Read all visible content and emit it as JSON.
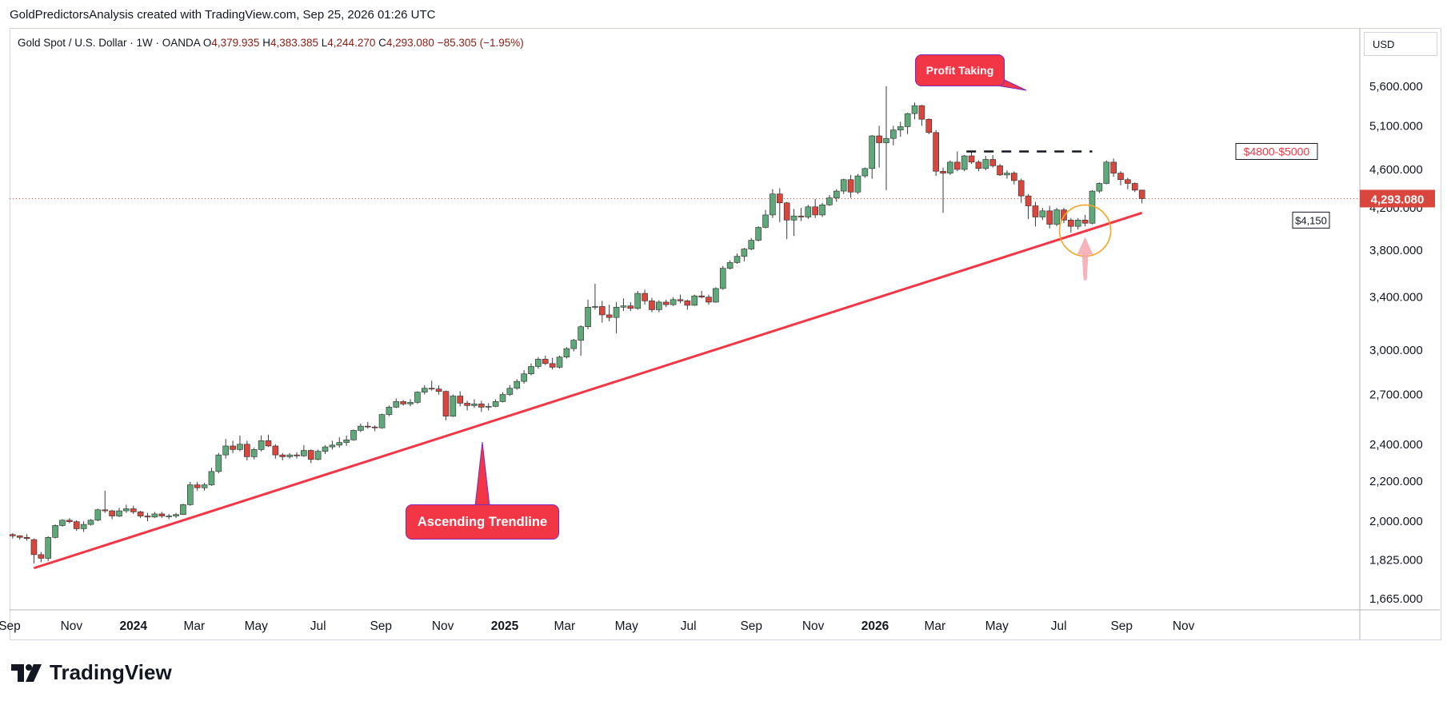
{
  "header": {
    "attribution": "GoldPredictorsAnalysis created with TradingView.com, Sep 25, 2026 01:26 UTC"
  },
  "legend": {
    "symbol": "Gold Spot / U.S. Dollar · 1W · OANDA",
    "open_label": "O",
    "open": "4,379.935",
    "high_label": "H",
    "high": "4,383.385",
    "low_label": "L",
    "low": "4,244.270",
    "close_label": "C",
    "close": "4,293.080",
    "change": "−85.305 (−1.95%)"
  },
  "currency_button": "USD",
  "annotations": {
    "profit_taking": "Profit Taking",
    "ascending_trendline": "Ascending Trendline",
    "resistance_zone": "$4800-$5000",
    "support_level": "$4,150"
  },
  "footer": {
    "brand": "TradingView"
  },
  "colors": {
    "up": "#5fa87a",
    "down": "#d9463e",
    "trendline": "#f23645",
    "circle": "#f5a623",
    "arrow": "#f4a7ae"
  },
  "chart_data": {
    "type": "candlestick",
    "title": "Gold Spot / U.S. Dollar · 1W · OANDA",
    "scale": "log",
    "y_ticks": [
      1665,
      1825,
      2000,
      2200,
      2400,
      2700,
      3000,
      3400,
      3800,
      4200,
      4600,
      5100,
      5600
    ],
    "y_tick_labels": [
      "1,665.000",
      "1,825.000",
      "2,000.000",
      "2,200.000",
      "2,400.000",
      "2,700.000",
      "3,000.000",
      "3,400.000",
      "3,800.000",
      "4,200.000",
      "4,600.000",
      "5,100.000",
      "5,600.000"
    ],
    "x_tick_labels": [
      {
        "label": "Sep",
        "date": "2023-09-01",
        "bold": false
      },
      {
        "label": "Nov",
        "date": "2023-11-01",
        "bold": false
      },
      {
        "label": "2024",
        "date": "2024-01-01",
        "bold": true
      },
      {
        "label": "Mar",
        "date": "2024-03-01",
        "bold": false
      },
      {
        "label": "May",
        "date": "2024-05-01",
        "bold": false
      },
      {
        "label": "Jul",
        "date": "2024-07-01",
        "bold": false
      },
      {
        "label": "Sep",
        "date": "2024-09-01",
        "bold": false
      },
      {
        "label": "Nov",
        "date": "2024-11-01",
        "bold": false
      },
      {
        "label": "2025",
        "date": "2025-01-01",
        "bold": true
      },
      {
        "label": "Mar",
        "date": "2025-03-01",
        "bold": false
      },
      {
        "label": "May",
        "date": "2025-05-01",
        "bold": false
      },
      {
        "label": "Jul",
        "date": "2025-07-01",
        "bold": false
      },
      {
        "label": "Sep",
        "date": "2025-09-01",
        "bold": false
      },
      {
        "label": "Nov",
        "date": "2025-11-01",
        "bold": false
      },
      {
        "label": "2026",
        "date": "2026-01-01",
        "bold": true
      },
      {
        "label": "Mar",
        "date": "2026-03-01",
        "bold": false
      },
      {
        "label": "May",
        "date": "2026-05-01",
        "bold": false
      },
      {
        "label": "Jul",
        "date": "2026-07-01",
        "bold": false
      },
      {
        "label": "Sep",
        "date": "2026-09-01",
        "bold": false
      },
      {
        "label": "Nov",
        "date": "2026-11-01",
        "bold": false
      }
    ],
    "last_price": 4293.08,
    "last_price_label": "4,293.080",
    "trendline": {
      "start": {
        "date": "2023-09-25",
        "price": 1790
      },
      "end": {
        "date": "2026-09-21",
        "price": 4150
      }
    },
    "resistance_line": {
      "price": 4800,
      "from_date": "2026-04-01",
      "to_date": "2026-08-03"
    },
    "circle_highlight": {
      "date": "2026-07-27",
      "price": 3980
    },
    "first_date": "2023-09-04",
    "week_step_days": 7,
    "candles": [
      [
        1938,
        1945,
        1920,
        1932
      ],
      [
        1932,
        1935,
        1915,
        1925
      ],
      [
        1925,
        1940,
        1910,
        1920
      ],
      [
        1915,
        1920,
        1810,
        1848
      ],
      [
        1848,
        1860,
        1815,
        1832
      ],
      [
        1832,
        1930,
        1820,
        1925
      ],
      [
        1925,
        1985,
        1920,
        1980
      ],
      [
        1980,
        2010,
        1975,
        2005
      ],
      [
        2005,
        2015,
        1990,
        1998
      ],
      [
        1998,
        2005,
        1955,
        1965
      ],
      [
        1965,
        2000,
        1950,
        1985
      ],
      [
        1985,
        2010,
        1980,
        2005
      ],
      [
        2005,
        2060,
        2000,
        2055
      ],
      [
        2055,
        2150,
        2040,
        2050
      ],
      [
        2050,
        2055,
        2010,
        2025
      ],
      [
        2025,
        2065,
        2020,
        2050
      ],
      [
        2050,
        2080,
        2040,
        2060
      ],
      [
        2060,
        2075,
        2035,
        2045
      ],
      [
        2045,
        2050,
        2015,
        2025
      ],
      [
        2025,
        2040,
        2000,
        2020
      ],
      [
        2020,
        2045,
        2015,
        2035
      ],
      [
        2035,
        2045,
        2015,
        2025
      ],
      [
        2025,
        2035,
        2010,
        2025
      ],
      [
        2025,
        2040,
        2015,
        2032
      ],
      [
        2032,
        2085,
        2030,
        2080
      ],
      [
        2080,
        2195,
        2075,
        2180
      ],
      [
        2180,
        2195,
        2150,
        2165
      ],
      [
        2165,
        2190,
        2150,
        2180
      ],
      [
        2180,
        2270,
        2175,
        2250
      ],
      [
        2250,
        2350,
        2240,
        2340
      ],
      [
        2340,
        2430,
        2320,
        2390
      ],
      [
        2390,
        2420,
        2350,
        2370
      ],
      [
        2370,
        2450,
        2360,
        2400
      ],
      [
        2400,
        2420,
        2310,
        2330
      ],
      [
        2330,
        2380,
        2315,
        2370
      ],
      [
        2370,
        2450,
        2360,
        2420
      ],
      [
        2420,
        2455,
        2385,
        2390
      ],
      [
        2390,
        2400,
        2320,
        2340
      ],
      [
        2340,
        2350,
        2310,
        2330
      ],
      [
        2330,
        2350,
        2320,
        2340
      ],
      [
        2340,
        2355,
        2320,
        2335
      ],
      [
        2335,
        2395,
        2330,
        2365
      ],
      [
        2365,
        2370,
        2295,
        2315
      ],
      [
        2315,
        2370,
        2310,
        2360
      ],
      [
        2360,
        2395,
        2345,
        2385
      ],
      [
        2385,
        2420,
        2370,
        2395
      ],
      [
        2395,
        2440,
        2380,
        2410
      ],
      [
        2410,
        2450,
        2390,
        2425
      ],
      [
        2425,
        2485,
        2420,
        2480
      ],
      [
        2480,
        2520,
        2470,
        2505
      ],
      [
        2505,
        2530,
        2490,
        2500
      ],
      [
        2500,
        2510,
        2475,
        2495
      ],
      [
        2495,
        2580,
        2490,
        2575
      ],
      [
        2575,
        2630,
        2565,
        2620
      ],
      [
        2620,
        2675,
        2615,
        2655
      ],
      [
        2655,
        2665,
        2630,
        2640
      ],
      [
        2640,
        2670,
        2625,
        2650
      ],
      [
        2650,
        2720,
        2640,
        2715
      ],
      [
        2715,
        2760,
        2700,
        2740
      ],
      [
        2740,
        2790,
        2725,
        2735
      ],
      [
        2735,
        2760,
        2700,
        2720
      ],
      [
        2720,
        2725,
        2540,
        2565
      ],
      [
        2565,
        2700,
        2560,
        2690
      ],
      [
        2690,
        2720,
        2625,
        2645
      ],
      [
        2645,
        2660,
        2600,
        2630
      ],
      [
        2630,
        2670,
        2615,
        2640
      ],
      [
        2640,
        2660,
        2590,
        2620
      ],
      [
        2620,
        2645,
        2600,
        2625
      ],
      [
        2625,
        2670,
        2620,
        2655
      ],
      [
        2655,
        2715,
        2650,
        2700
      ],
      [
        2700,
        2760,
        2690,
        2740
      ],
      [
        2740,
        2800,
        2730,
        2785
      ],
      [
        2785,
        2860,
        2770,
        2835
      ],
      [
        2835,
        2905,
        2825,
        2885
      ],
      [
        2885,
        2950,
        2870,
        2935
      ],
      [
        2935,
        2960,
        2895,
        2905
      ],
      [
        2905,
        2945,
        2865,
        2880
      ],
      [
        2880,
        2960,
        2870,
        2950
      ],
      [
        2950,
        3020,
        2940,
        3010
      ],
      [
        3010,
        3080,
        2990,
        3070
      ],
      [
        3070,
        3180,
        2960,
        3170
      ],
      [
        3170,
        3380,
        3150,
        3320
      ],
      [
        3320,
        3510,
        3300,
        3325
      ],
      [
        3325,
        3370,
        3200,
        3260
      ],
      [
        3260,
        3340,
        3210,
        3240
      ],
      [
        3240,
        3360,
        3120,
        3320
      ],
      [
        3320,
        3390,
        3290,
        3330
      ],
      [
        3330,
        3360,
        3290,
        3310
      ],
      [
        3310,
        3450,
        3300,
        3430
      ],
      [
        3430,
        3460,
        3340,
        3370
      ],
      [
        3370,
        3395,
        3280,
        3300
      ],
      [
        3300,
        3375,
        3280,
        3360
      ],
      [
        3360,
        3380,
        3320,
        3340
      ],
      [
        3340,
        3400,
        3330,
        3380
      ],
      [
        3380,
        3420,
        3350,
        3370
      ],
      [
        3370,
        3380,
        3300,
        3335
      ],
      [
        3335,
        3420,
        3330,
        3410
      ],
      [
        3410,
        3450,
        3390,
        3400
      ],
      [
        3400,
        3420,
        3340,
        3360
      ],
      [
        3360,
        3480,
        3355,
        3470
      ],
      [
        3470,
        3660,
        3460,
        3640
      ],
      [
        3640,
        3710,
        3630,
        3690
      ],
      [
        3690,
        3770,
        3680,
        3745
      ],
      [
        3745,
        3820,
        3700,
        3810
      ],
      [
        3810,
        3910,
        3800,
        3890
      ],
      [
        3890,
        4020,
        3880,
        4010
      ],
      [
        4010,
        4180,
        4000,
        4130
      ],
      [
        4130,
        4390,
        4100,
        4340
      ],
      [
        4340,
        4400,
        4060,
        4250
      ],
      [
        4250,
        4260,
        3900,
        4080
      ],
      [
        4080,
        4190,
        3930,
        4120
      ],
      [
        4120,
        4200,
        4070,
        4110
      ],
      [
        4110,
        4230,
        4090,
        4210
      ],
      [
        4210,
        4290,
        4100,
        4130
      ],
      [
        4130,
        4250,
        4110,
        4230
      ],
      [
        4230,
        4330,
        4220,
        4300
      ],
      [
        4300,
        4390,
        4260,
        4370
      ],
      [
        4370,
        4500,
        4340,
        4490
      ],
      [
        4490,
        4540,
        4300,
        4360
      ],
      [
        4360,
        4550,
        4340,
        4530
      ],
      [
        4530,
        4620,
        4510,
        4610
      ],
      [
        4610,
        4990,
        4500,
        4980
      ],
      [
        4980,
        5100,
        4620,
        4900
      ],
      [
        4900,
        5600,
        4380,
        4950
      ],
      [
        4950,
        5100,
        4870,
        5050
      ],
      [
        5050,
        5150,
        4970,
        5090
      ],
      [
        5090,
        5260,
        5000,
        5250
      ],
      [
        5250,
        5390,
        5180,
        5350
      ],
      [
        5350,
        5360,
        5100,
        5180
      ],
      [
        5180,
        5190,
        5000,
        5020
      ],
      [
        5020,
        5050,
        4530,
        4580
      ],
      [
        4580,
        4620,
        4150,
        4560
      ],
      [
        4560,
        4700,
        4540,
        4680
      ],
      [
        4680,
        4800,
        4580,
        4600
      ],
      [
        4600,
        4760,
        4580,
        4750
      ],
      [
        4750,
        4790,
        4660,
        4680
      ],
      [
        4680,
        4700,
        4580,
        4610
      ],
      [
        4610,
        4750,
        4590,
        4710
      ],
      [
        4710,
        4760,
        4620,
        4640
      ],
      [
        4640,
        4660,
        4530,
        4540
      ],
      [
        4540,
        4590,
        4500,
        4560
      ],
      [
        4560,
        4580,
        4440,
        4480
      ],
      [
        4480,
        4500,
        4250,
        4320
      ],
      [
        4320,
        4340,
        4090,
        4220
      ],
      [
        4220,
        4260,
        4020,
        4110
      ],
      [
        4110,
        4200,
        4080,
        4170
      ],
      [
        4170,
        4220,
        4000,
        4040
      ],
      [
        4040,
        4200,
        4020,
        4180
      ],
      [
        4180,
        4200,
        4050,
        4080
      ],
      [
        4080,
        4100,
        3960,
        4020
      ],
      [
        4020,
        4100,
        3990,
        4080
      ],
      [
        4080,
        4130,
        4020,
        4050
      ],
      [
        4050,
        4380,
        4040,
        4370
      ],
      [
        4370,
        4460,
        4350,
        4450
      ],
      [
        4450,
        4700,
        4440,
        4680
      ],
      [
        4680,
        4720,
        4520,
        4560
      ],
      [
        4560,
        4580,
        4430,
        4490
      ],
      [
        4490,
        4510,
        4390,
        4450
      ],
      [
        4450,
        4460,
        4360,
        4380
      ],
      [
        4380,
        4385,
        4244,
        4293
      ]
    ]
  }
}
